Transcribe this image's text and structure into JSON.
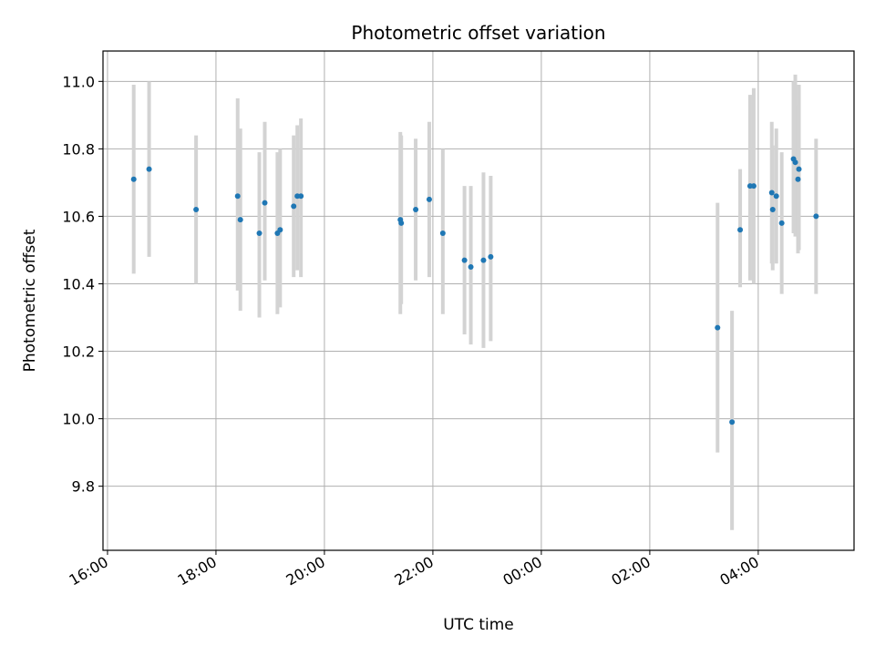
{
  "chart_data": {
    "type": "scatter",
    "title": "Photometric offset variation",
    "xlabel": "UTC time",
    "ylabel": "Photometric offset",
    "x_unit": "UTC time (HH:MM)",
    "xlim": [
      "15:55",
      "05:46"
    ],
    "ylim": [
      9.61,
      11.09
    ],
    "grid": true,
    "x_ticks": [
      "16:00",
      "18:00",
      "20:00",
      "22:00",
      "00:00",
      "02:00",
      "04:00"
    ],
    "y_ticks": [
      "9.8",
      "10.0",
      "10.2",
      "10.4",
      "10.6",
      "10.8",
      "11.0"
    ],
    "y_tick_values": [
      9.8,
      10.0,
      10.2,
      10.4,
      10.6,
      10.8,
      11.0
    ],
    "colors": {
      "point": "#1f77b4",
      "errorbar": "#d3d3d3",
      "grid": "#b0b0b0"
    },
    "points": [
      {
        "x": "16:29",
        "y": 10.71,
        "lo": 10.43,
        "hi": 10.99
      },
      {
        "x": "16:46",
        "y": 10.74,
        "lo": 10.48,
        "hi": 11.0
      },
      {
        "x": "17:38",
        "y": 10.62,
        "lo": 10.4,
        "hi": 10.84
      },
      {
        "x": "18:24",
        "y": 10.66,
        "lo": 10.38,
        "hi": 10.95
      },
      {
        "x": "18:27",
        "y": 10.59,
        "lo": 10.32,
        "hi": 10.86
      },
      {
        "x": "18:48",
        "y": 10.55,
        "lo": 10.3,
        "hi": 10.79
      },
      {
        "x": "18:54",
        "y": 10.64,
        "lo": 10.41,
        "hi": 10.88
      },
      {
        "x": "19:08",
        "y": 10.55,
        "lo": 10.31,
        "hi": 10.79
      },
      {
        "x": "19:11",
        "y": 10.56,
        "lo": 10.33,
        "hi": 10.8
      },
      {
        "x": "19:26",
        "y": 10.63,
        "lo": 10.42,
        "hi": 10.84
      },
      {
        "x": "19:30",
        "y": 10.66,
        "lo": 10.44,
        "hi": 10.87
      },
      {
        "x": "19:34",
        "y": 10.66,
        "lo": 10.42,
        "hi": 10.89
      },
      {
        "x": "21:24",
        "y": 10.59,
        "lo": 10.31,
        "hi": 10.85
      },
      {
        "x": "21:25",
        "y": 10.58,
        "lo": 10.34,
        "hi": 10.84
      },
      {
        "x": "21:41",
        "y": 10.62,
        "lo": 10.41,
        "hi": 10.83
      },
      {
        "x": "21:56",
        "y": 10.65,
        "lo": 10.42,
        "hi": 10.88
      },
      {
        "x": "22:11",
        "y": 10.55,
        "lo": 10.31,
        "hi": 10.8
      },
      {
        "x": "22:35",
        "y": 10.47,
        "lo": 10.25,
        "hi": 10.69
      },
      {
        "x": "22:42",
        "y": 10.45,
        "lo": 10.22,
        "hi": 10.69
      },
      {
        "x": "22:56",
        "y": 10.47,
        "lo": 10.21,
        "hi": 10.73
      },
      {
        "x": "23:04",
        "y": 10.48,
        "lo": 10.23,
        "hi": 10.72
      },
      {
        "x": "03:15",
        "y": 10.27,
        "lo": 9.9,
        "hi": 10.64
      },
      {
        "x": "03:31",
        "y": 9.99,
        "lo": 9.67,
        "hi": 10.32
      },
      {
        "x": "03:40",
        "y": 10.56,
        "lo": 10.39,
        "hi": 10.74
      },
      {
        "x": "03:51",
        "y": 10.69,
        "lo": 10.41,
        "hi": 10.96
      },
      {
        "x": "03:55",
        "y": 10.69,
        "lo": 10.4,
        "hi": 10.98
      },
      {
        "x": "04:15",
        "y": 10.67,
        "lo": 10.46,
        "hi": 10.88
      },
      {
        "x": "04:16",
        "y": 10.62,
        "lo": 10.44,
        "hi": 10.81
      },
      {
        "x": "04:20",
        "y": 10.66,
        "lo": 10.46,
        "hi": 10.86
      },
      {
        "x": "04:26",
        "y": 10.58,
        "lo": 10.37,
        "hi": 10.79
      },
      {
        "x": "04:39",
        "y": 10.77,
        "lo": 10.55,
        "hi": 11.0
      },
      {
        "x": "04:41",
        "y": 10.76,
        "lo": 10.54,
        "hi": 11.02
      },
      {
        "x": "04:44",
        "y": 10.71,
        "lo": 10.49,
        "hi": 10.93
      },
      {
        "x": "04:45",
        "y": 10.74,
        "lo": 10.5,
        "hi": 10.99
      },
      {
        "x": "05:04",
        "y": 10.6,
        "lo": 10.37,
        "hi": 10.83
      }
    ]
  }
}
